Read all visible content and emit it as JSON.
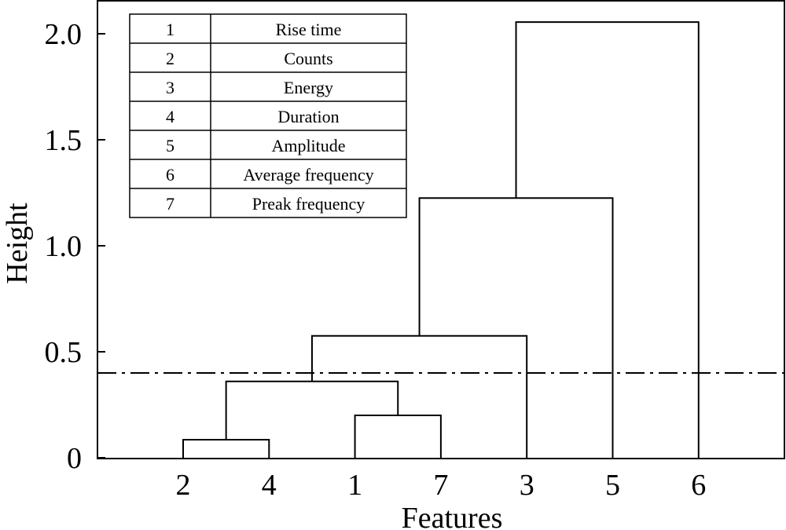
{
  "chart_data": {
    "type": "dendrogram",
    "xlabel": "Features",
    "ylabel": "Height",
    "ylim": [
      0,
      2.15
    ],
    "yticks": [
      {
        "value": 0,
        "label": "0"
      },
      {
        "value": 0.5,
        "label": "0.5"
      },
      {
        "value": 1.0,
        "label": "1.0"
      },
      {
        "value": 1.5,
        "label": "1.5"
      },
      {
        "value": 2.0,
        "label": "2.0"
      }
    ],
    "leaf_order": [
      "2",
      "4",
      "1",
      "7",
      "3",
      "5",
      "6"
    ],
    "merges": [
      {
        "left": "2",
        "right": "4",
        "height": 0.085
      },
      {
        "left": "1",
        "right": "7",
        "height": 0.2
      },
      {
        "left": "2+4",
        "right": "1+7",
        "height": 0.36
      },
      {
        "left": "2+4+1+7",
        "right": "3",
        "height": 0.575
      },
      {
        "left": "2+4+1+7+3",
        "right": "5",
        "height": 1.225
      },
      {
        "left": "2+4+1+7+3+5",
        "right": "6",
        "height": 2.055
      }
    ],
    "cut_height": 0.4,
    "legend_table": {
      "position": "top-left",
      "rows": [
        {
          "id": "1",
          "name": "Rise time"
        },
        {
          "id": "2",
          "name": "Counts"
        },
        {
          "id": "3",
          "name": "Energy"
        },
        {
          "id": "4",
          "name": "Duration"
        },
        {
          "id": "5",
          "name": "Amplitude"
        },
        {
          "id": "6",
          "name": "Average frequency"
        },
        {
          "id": "7",
          "name": "Preak frequency"
        }
      ]
    },
    "grid": false
  }
}
